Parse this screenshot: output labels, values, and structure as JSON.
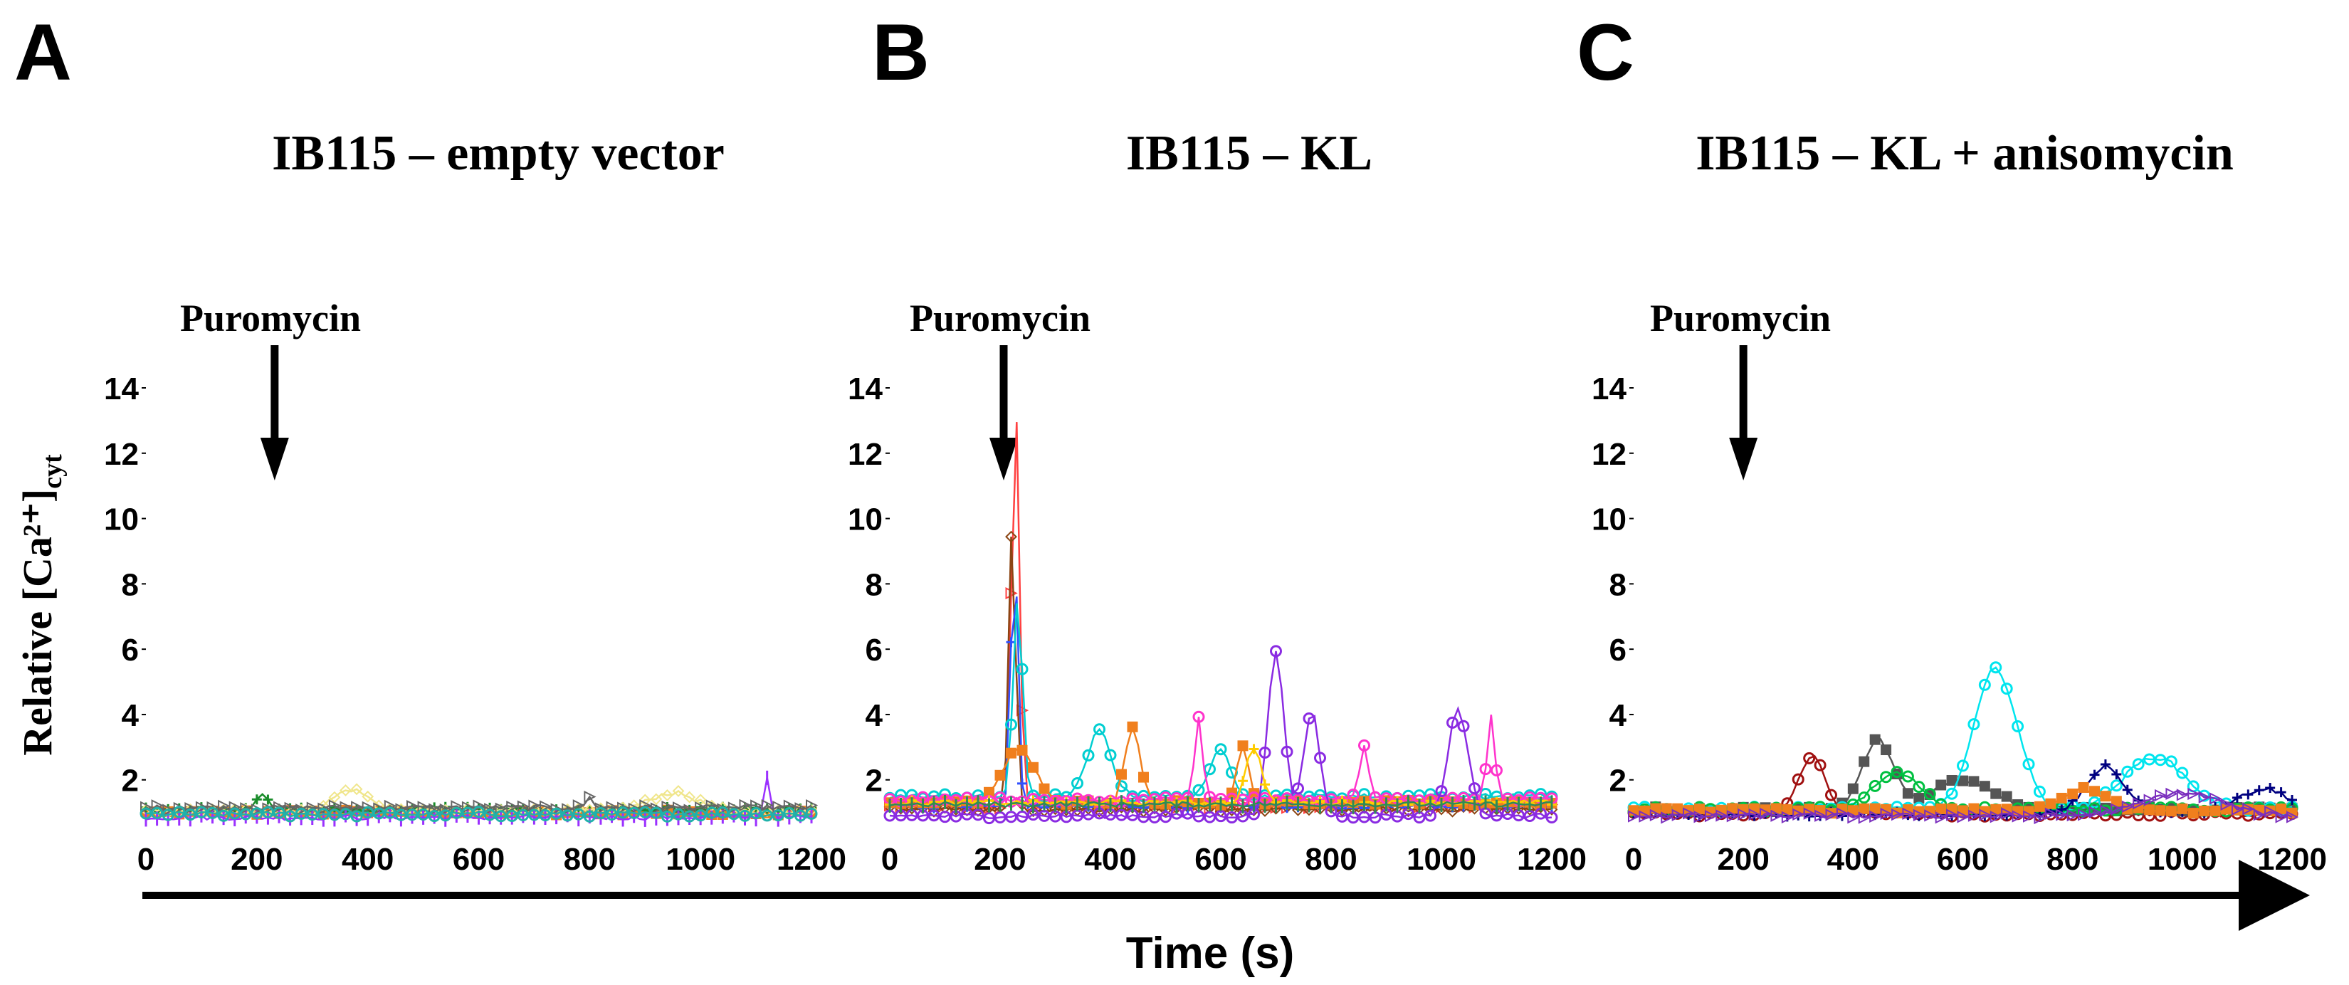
{
  "figure": {
    "ylabel": "Relative [Ca²⁺]",
    "ylabel_sub": "cyt",
    "xlabel": "Time (s)",
    "arrow_color": "#000000"
  },
  "chart_data": [
    {
      "type": "scatter",
      "panel": "A",
      "title": "IB115 – empty vector",
      "annotation": "Puromycin",
      "annotation_x": 200,
      "xlim": [
        0,
        1200
      ],
      "ylim": [
        0.6,
        14
      ],
      "xticks": [
        0,
        200,
        400,
        600,
        800,
        1000,
        1200
      ],
      "yticks": [
        2,
        4,
        6,
        8,
        10,
        12,
        14
      ],
      "series": [
        {
          "name": "trace-orange",
          "color": "#f07f1d",
          "marker": "square",
          "baseline": 1.0,
          "peaks": []
        },
        {
          "name": "trace-green",
          "color": "#1a8c2a",
          "marker": "plus",
          "baseline": 1.1,
          "peaks": [
            [
              210,
              1.6,
              15
            ]
          ]
        },
        {
          "name": "trace-yellow",
          "color": "#f0e68c",
          "marker": "diamond",
          "baseline": 1.05,
          "peaks": [
            [
              370,
              1.7,
              45
            ],
            [
              950,
              1.6,
              60
            ]
          ]
        },
        {
          "name": "trace-purple",
          "color": "#9b30ff",
          "marker": "bar",
          "baseline": 0.85,
          "peaks": [
            [
              1120,
              2.1,
              8
            ]
          ]
        },
        {
          "name": "trace-gray",
          "color": "#666666",
          "marker": "triangle",
          "baseline": 1.15,
          "peaks": [
            [
              800,
              1.45,
              10
            ]
          ]
        },
        {
          "name": "trace-teal",
          "color": "#20b2aa",
          "marker": "circle",
          "baseline": 0.95,
          "peaks": []
        }
      ]
    },
    {
      "type": "scatter",
      "panel": "B",
      "title": "IB115 – KL",
      "annotation": "Puromycin",
      "annotation_x": 200,
      "xlim": [
        0,
        1200
      ],
      "ylim": [
        0.6,
        14
      ],
      "xticks": [
        0,
        200,
        400,
        600,
        800,
        1000,
        1200
      ],
      "yticks": [
        2,
        4,
        6,
        8,
        10,
        12,
        14
      ],
      "series": [
        {
          "name": "trace-red",
          "color": "#ff4040",
          "marker": "triangle",
          "baseline": 1.2,
          "peaks": [
            [
              228,
              13.5,
              10
            ]
          ]
        },
        {
          "name": "trace-brown",
          "color": "#8b4513",
          "marker": "diamond",
          "baseline": 1.1,
          "peaks": [
            [
              222,
              9.8,
              9
            ]
          ]
        },
        {
          "name": "trace-blue",
          "color": "#3050ff",
          "marker": "plus",
          "baseline": 1.2,
          "peaks": [
            [
              226,
              9.0,
              9
            ]
          ]
        },
        {
          "name": "trace-cyan",
          "color": "#00ced1",
          "marker": "circle",
          "baseline": 1.5,
          "peaks": [
            [
              232,
              7.5,
              12
            ],
            [
              380,
              3.5,
              30
            ],
            [
              600,
              3.0,
              25
            ]
          ]
        },
        {
          "name": "trace-orange",
          "color": "#f07f1d",
          "marker": "square",
          "baseline": 1.3,
          "peaks": [
            [
              235,
              3.0,
              40
            ],
            [
              440,
              3.6,
              20
            ],
            [
              640,
              3.1,
              15
            ]
          ]
        },
        {
          "name": "trace-magenta",
          "color": "#ff33cc",
          "marker": "circle",
          "baseline": 1.4,
          "peaks": [
            [
              560,
              4.0,
              10
            ],
            [
              860,
              3.0,
              12
            ],
            [
              1090,
              4.0,
              10
            ]
          ]
        },
        {
          "name": "trace-violet",
          "color": "#8a2be2",
          "marker": "circle",
          "baseline": 0.9,
          "peaks": [
            [
              700,
              6.0,
              20
            ],
            [
              765,
              4.1,
              20
            ],
            [
              1030,
              4.2,
              25
            ]
          ]
        },
        {
          "name": "trace-yellow",
          "color": "#ffcc00",
          "marker": "plus",
          "baseline": 1.3,
          "peaks": [
            [
              660,
              3.0,
              20
            ]
          ]
        },
        {
          "name": "trace-green",
          "color": "#2e8b57",
          "marker": "bar",
          "baseline": 1.25,
          "peaks": []
        }
      ]
    },
    {
      "type": "scatter",
      "panel": "C",
      "title": "IB115 – KL + anisomycin",
      "annotation": "Puromycin",
      "annotation_x": 200,
      "xlim": [
        0,
        1200
      ],
      "ylim": [
        0.6,
        14
      ],
      "xticks": [
        0,
        200,
        400,
        600,
        800,
        1000,
        1200
      ],
      "yticks": [
        2,
        4,
        6,
        8,
        10,
        12,
        14
      ],
      "series": [
        {
          "name": "trace-darkred",
          "color": "#a01010",
          "marker": "circle",
          "baseline": 0.95,
          "peaks": [
            [
              325,
              2.7,
              35
            ]
          ]
        },
        {
          "name": "trace-gray",
          "color": "#555555",
          "marker": "square",
          "baseline": 1.1,
          "peaks": [
            [
              445,
              3.2,
              40
            ],
            [
              600,
              2.0,
              80
            ]
          ]
        },
        {
          "name": "trace-cyan",
          "color": "#00e5ee",
          "marker": "circle",
          "baseline": 1.1,
          "peaks": [
            [
              660,
              5.4,
              55
            ],
            [
              950,
              2.7,
              80
            ]
          ]
        },
        {
          "name": "trace-green",
          "color": "#00c040",
          "marker": "circle",
          "baseline": 1.1,
          "peaks": [
            [
              480,
              2.2,
              60
            ]
          ]
        },
        {
          "name": "trace-navy",
          "color": "#000080",
          "marker": "plus",
          "baseline": 0.95,
          "peaks": [
            [
              860,
              2.4,
              50
            ],
            [
              1150,
              1.7,
              70
            ]
          ]
        },
        {
          "name": "trace-orange",
          "color": "#f07f1d",
          "marker": "square",
          "baseline": 1.05,
          "peaks": [
            [
              820,
              1.7,
              60
            ]
          ]
        },
        {
          "name": "trace-purple",
          "color": "#7b2fbe",
          "marker": "triangle",
          "baseline": 0.9,
          "peaks": [
            [
              1000,
              1.6,
              100
            ]
          ]
        }
      ]
    }
  ]
}
